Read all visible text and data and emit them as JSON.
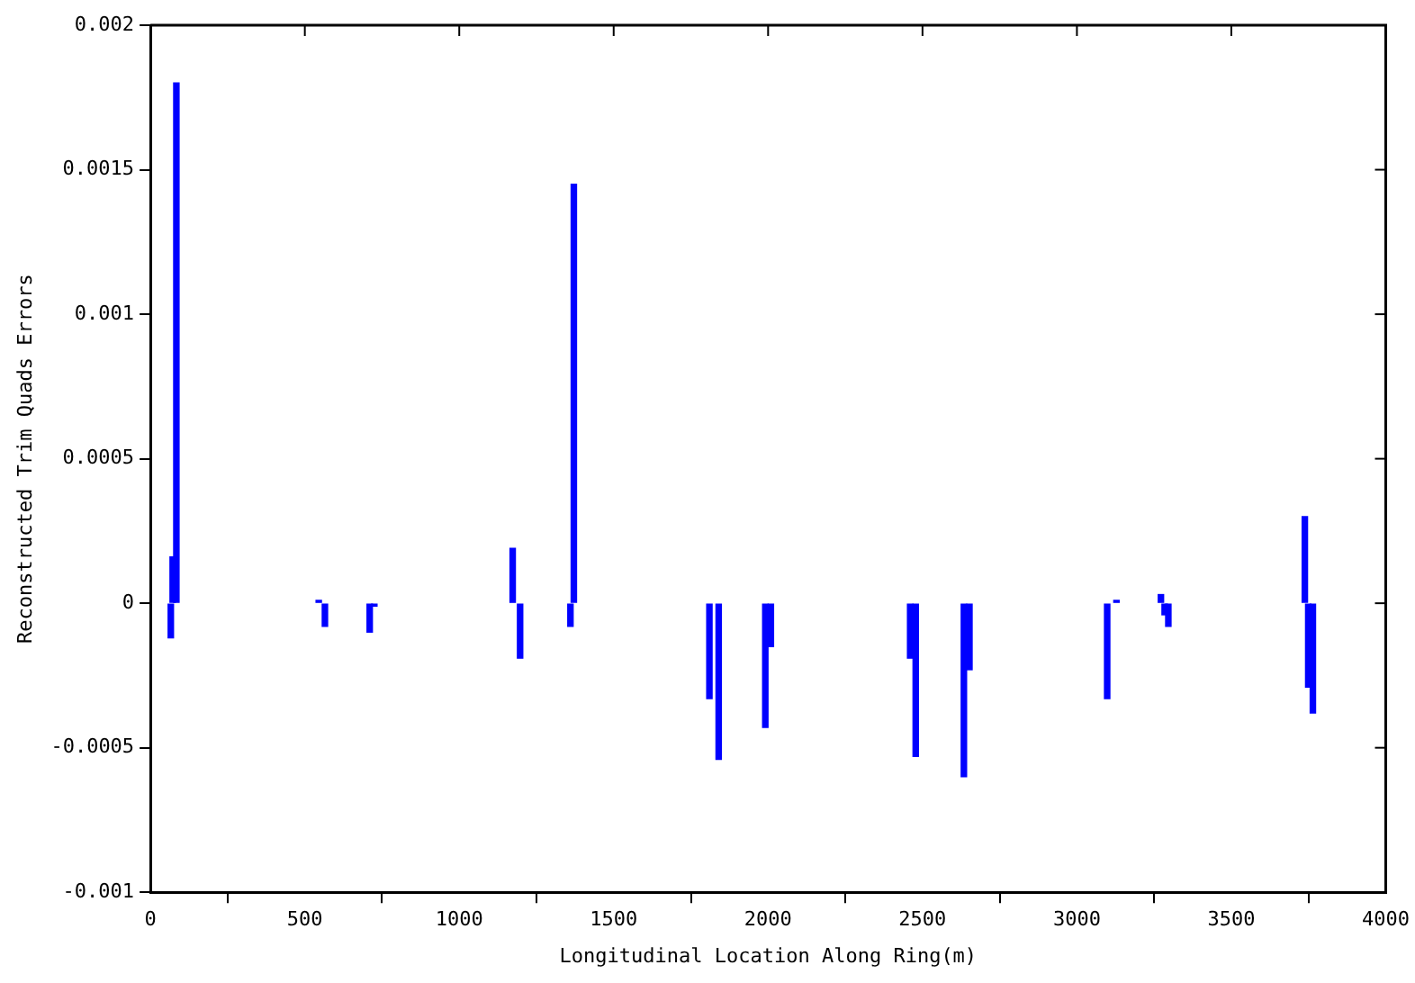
{
  "chart_data": {
    "type": "bar",
    "xlabel": "Longitudinal Location Along Ring(m)",
    "ylabel": "Reconstructed Trim Quads Errors",
    "x": [
      66,
      72,
      84,
      545,
      565,
      710,
      725,
      1173,
      1197,
      1360,
      1371,
      1810,
      1840,
      1991,
      2009,
      2460,
      2478,
      2634,
      2652,
      3098,
      3128,
      3272,
      3284,
      3296,
      3738,
      3749,
      3764
    ],
    "values": [
      -0.00012,
      0.00016,
      0.0018,
      1e-05,
      -8e-05,
      -0.0001,
      -1e-05,
      0.00019,
      -0.00019,
      -8e-05,
      0.00145,
      -0.00033,
      -0.00054,
      -0.00043,
      -0.00015,
      -0.00019,
      -0.00053,
      -0.0006,
      -0.00023,
      -0.00033,
      1e-05,
      3e-05,
      -4e-05,
      -8e-05,
      0.0003,
      -0.00029,
      -0.00038
    ],
    "color": "#0000ff",
    "xlim": [
      0,
      4000
    ],
    "xticks": [
      0,
      500,
      1000,
      1500,
      2000,
      2500,
      3000,
      3500,
      4000
    ],
    "ylim": [
      -0.001,
      0.002
    ],
    "yticks": [
      -0.001,
      -0.0005,
      0,
      0.0005,
      0.001,
      0.0015,
      0.002
    ],
    "grid": false,
    "legend": false
  }
}
